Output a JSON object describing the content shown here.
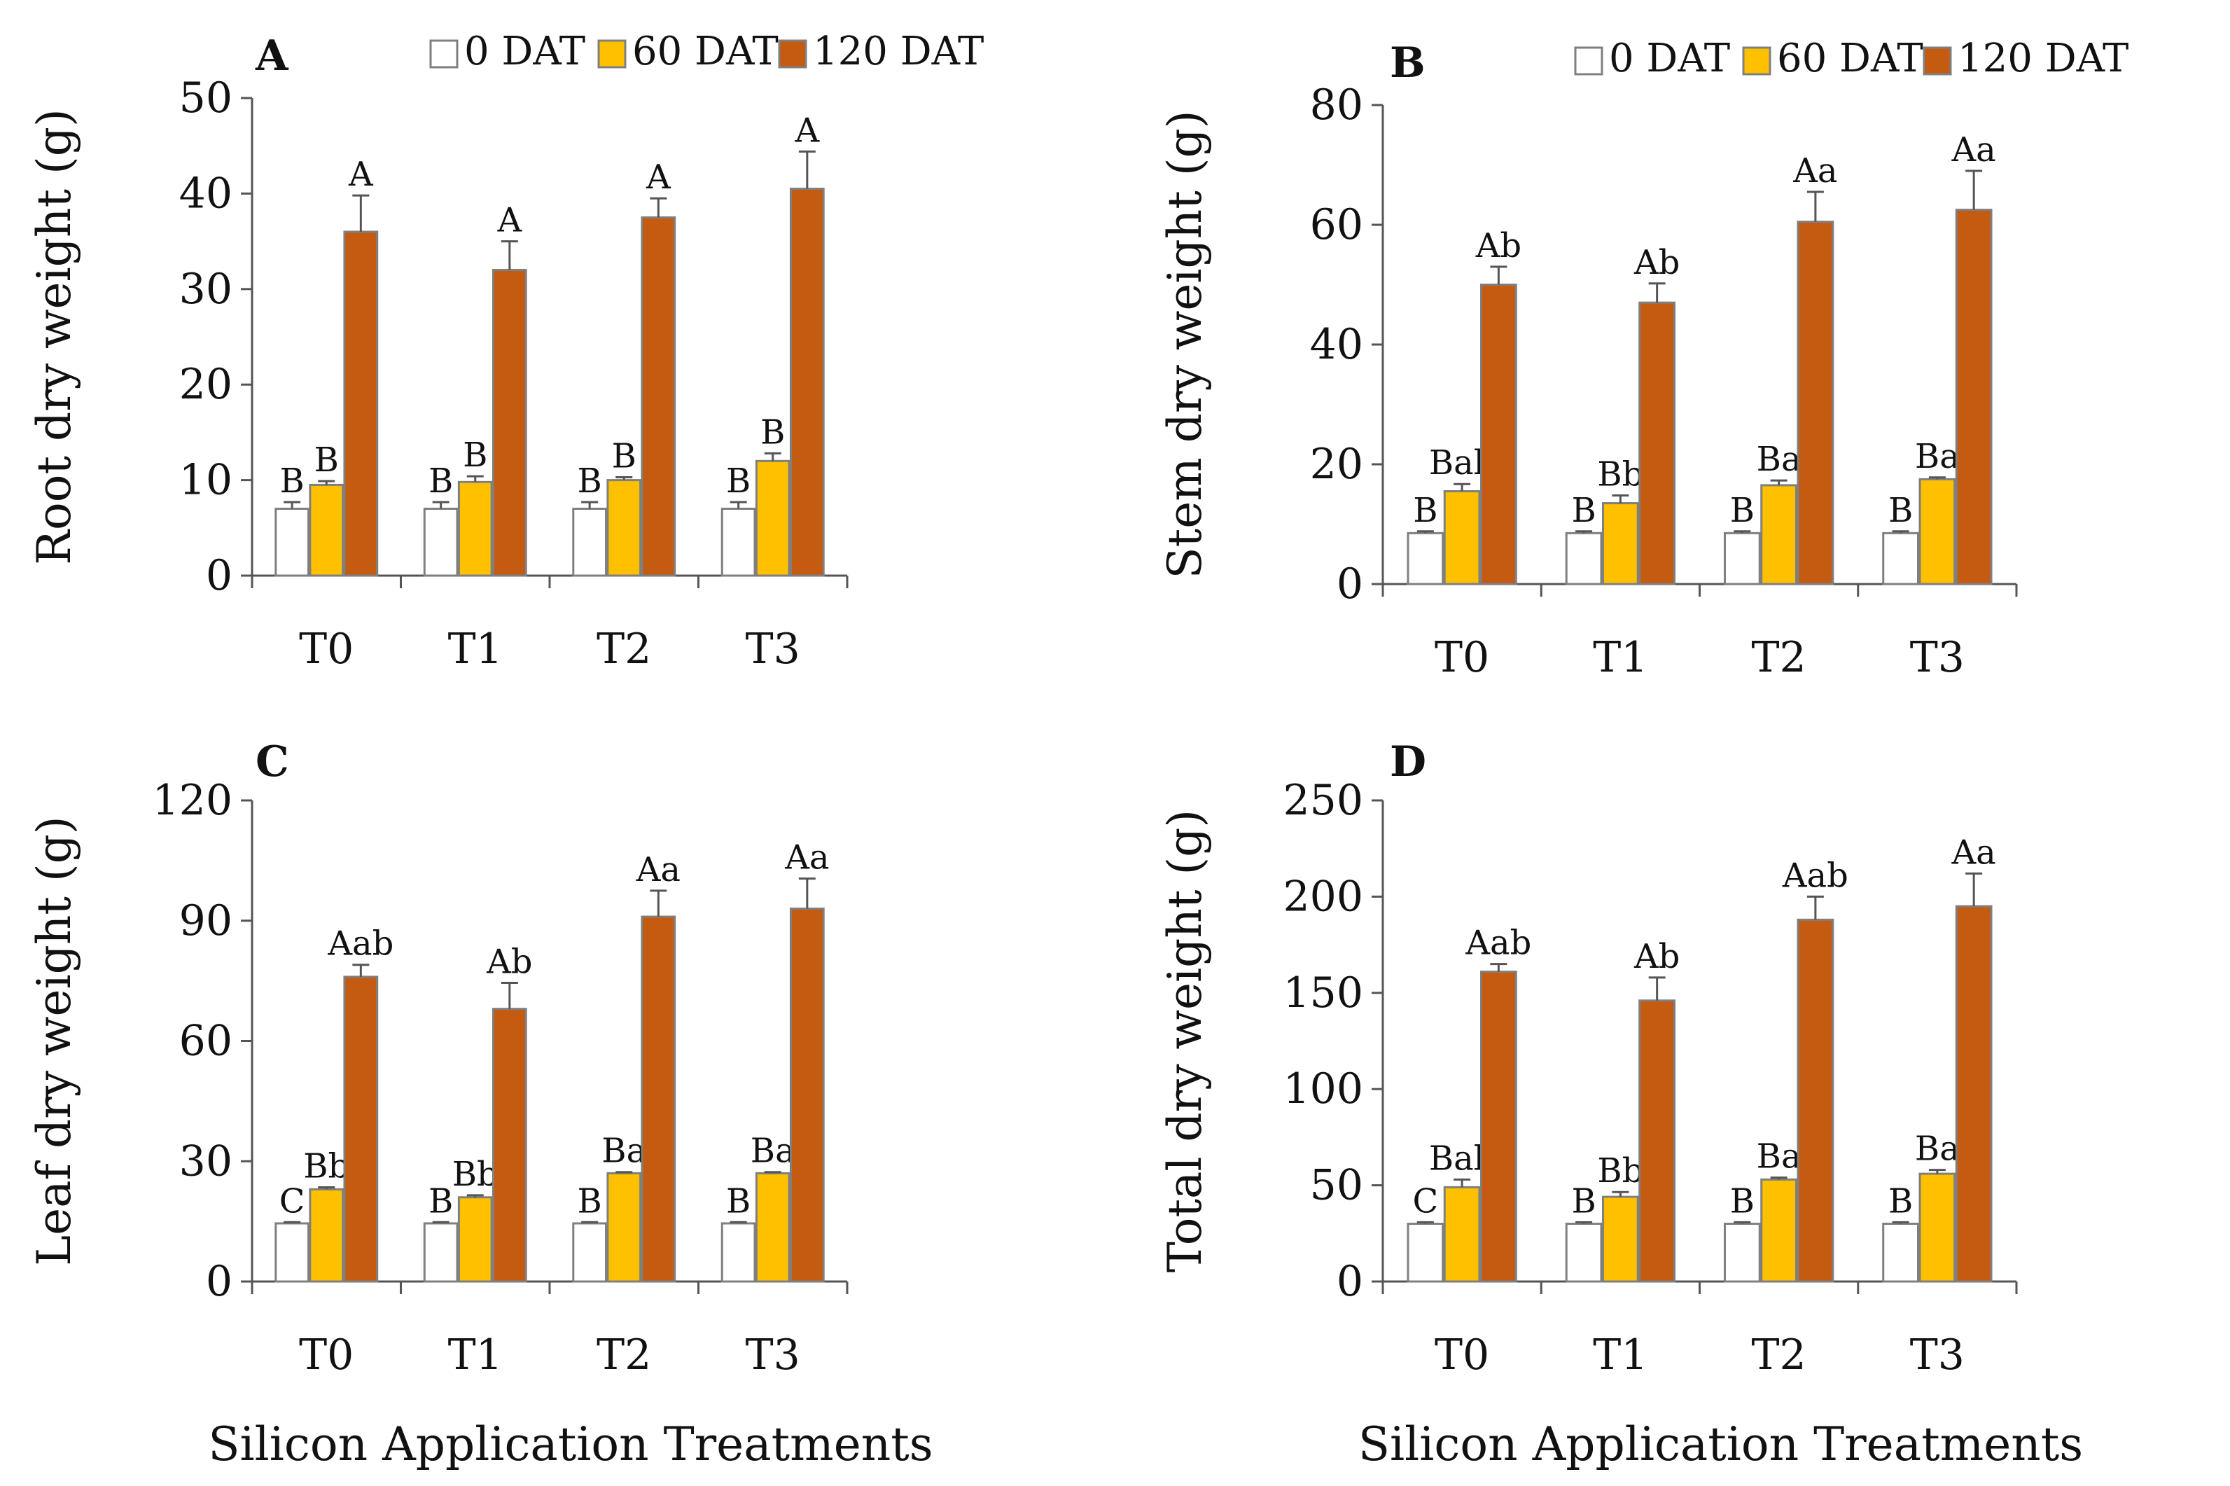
{
  "chart_data": [
    {
      "type": "bar",
      "panel_label": "A",
      "title": "",
      "categories": [
        "T0",
        "T1",
        "T2",
        "T3"
      ],
      "ylabel": "Root dry weight (g)",
      "xlabel": "",
      "ylim": [
        0,
        50
      ],
      "yticks": [
        0,
        10,
        20,
        30,
        40,
        50
      ],
      "series": [
        {
          "name": "0 DAT",
          "values": [
            7,
            7,
            7,
            7
          ],
          "errors": [
            0.7,
            0.7,
            0.7,
            0.7
          ],
          "letters": [
            "B",
            "B",
            "B",
            "B"
          ]
        },
        {
          "name": "60 DAT",
          "values": [
            9.5,
            9.8,
            10,
            12
          ],
          "errors": [
            0.4,
            0.6,
            0.3,
            0.8
          ],
          "letters": [
            "B",
            "B",
            "B",
            "B"
          ]
        },
        {
          "name": "120 DAT",
          "values": [
            36,
            32,
            37.5,
            40.5
          ],
          "errors": [
            3.8,
            3,
            2,
            3.9
          ],
          "letters": [
            "A",
            "A",
            "A",
            "A"
          ]
        }
      ],
      "legend": [
        "0 DAT",
        "60 DAT",
        "120 DAT"
      ]
    },
    {
      "type": "bar",
      "panel_label": "B",
      "title": "",
      "categories": [
        "T0",
        "T1",
        "T2",
        "T3"
      ],
      "ylabel": "Stem dry weight (g)",
      "xlabel": "",
      "ylim": [
        0,
        80
      ],
      "yticks": [
        0,
        20,
        40,
        60,
        80
      ],
      "series": [
        {
          "name": "0 DAT",
          "values": [
            8.5,
            8.5,
            8.5,
            8.5
          ],
          "errors": [
            0.3,
            0.3,
            0.3,
            0.3
          ],
          "letters": [
            "B",
            "B",
            "B",
            "B"
          ]
        },
        {
          "name": "60 DAT",
          "values": [
            15.5,
            13.5,
            16.5,
            17.5
          ],
          "errors": [
            1.2,
            1.3,
            0.8,
            0.3
          ],
          "letters": [
            "Bab",
            "Bb",
            "Ba",
            "Ba"
          ]
        },
        {
          "name": "120 DAT",
          "values": [
            50,
            47,
            60.5,
            62.5
          ],
          "errors": [
            3,
            3.2,
            5,
            6.5
          ],
          "letters": [
            "Ab",
            "Ab",
            "Aa",
            "Aa"
          ]
        }
      ],
      "legend": [
        "0 DAT",
        "60 DAT",
        "120 DAT"
      ]
    },
    {
      "type": "bar",
      "panel_label": "C",
      "title": "",
      "categories": [
        "T0",
        "T1",
        "T2",
        "T3"
      ],
      "ylabel": "Leaf dry weight (g)",
      "xlabel": "Silicon Application Treatments",
      "ylim": [
        0,
        120
      ],
      "yticks": [
        0,
        30,
        60,
        90,
        120
      ],
      "series": [
        {
          "name": "0 DAT",
          "values": [
            14.5,
            14.5,
            14.5,
            14.5
          ],
          "errors": [
            0.3,
            0.3,
            0.3,
            0.3
          ],
          "letters": [
            "C",
            "B",
            "B",
            "B"
          ]
        },
        {
          "name": "60 DAT",
          "values": [
            23,
            21,
            27,
            27
          ],
          "errors": [
            0.5,
            0.5,
            0.3,
            0.3
          ],
          "letters": [
            "Bb",
            "Bb",
            "Ba",
            "Ba"
          ]
        },
        {
          "name": "120 DAT",
          "values": [
            76,
            68,
            91,
            93
          ],
          "errors": [
            3,
            6.5,
            6.5,
            7.5
          ],
          "letters": [
            "Aab",
            "Ab",
            "Aa",
            "Aa"
          ]
        }
      ],
      "legend": []
    },
    {
      "type": "bar",
      "panel_label": "D",
      "title": "",
      "categories": [
        "T0",
        "T1",
        "T2",
        "T3"
      ],
      "ylabel": "Total dry weight (g)",
      "xlabel": "Silicon Application Treatments",
      "ylim": [
        0,
        250
      ],
      "yticks": [
        0,
        50,
        100,
        150,
        200,
        250
      ],
      "series": [
        {
          "name": "0 DAT",
          "values": [
            30,
            30,
            30,
            30
          ],
          "errors": [
            0.8,
            0.8,
            0.8,
            0.8
          ],
          "letters": [
            "C",
            "B",
            "B",
            "B"
          ]
        },
        {
          "name": "60 DAT",
          "values": [
            49,
            44,
            53,
            56
          ],
          "errors": [
            4,
            2.5,
            1,
            2
          ],
          "letters": [
            "Bab",
            "Bb",
            "Ba",
            "Ba"
          ]
        },
        {
          "name": "120 DAT",
          "values": [
            161,
            146,
            188,
            195
          ],
          "errors": [
            4,
            12,
            12,
            17
          ],
          "letters": [
            "Aab",
            "Ab",
            "Aab",
            "Aa"
          ]
        }
      ],
      "legend": []
    }
  ],
  "colors": {
    "0 DAT": "#ffffff",
    "60 DAT": "#ffc000",
    "120 DAT": "#c55a11",
    "axis": "#555555",
    "bar_stroke": "#7f7f7f"
  }
}
